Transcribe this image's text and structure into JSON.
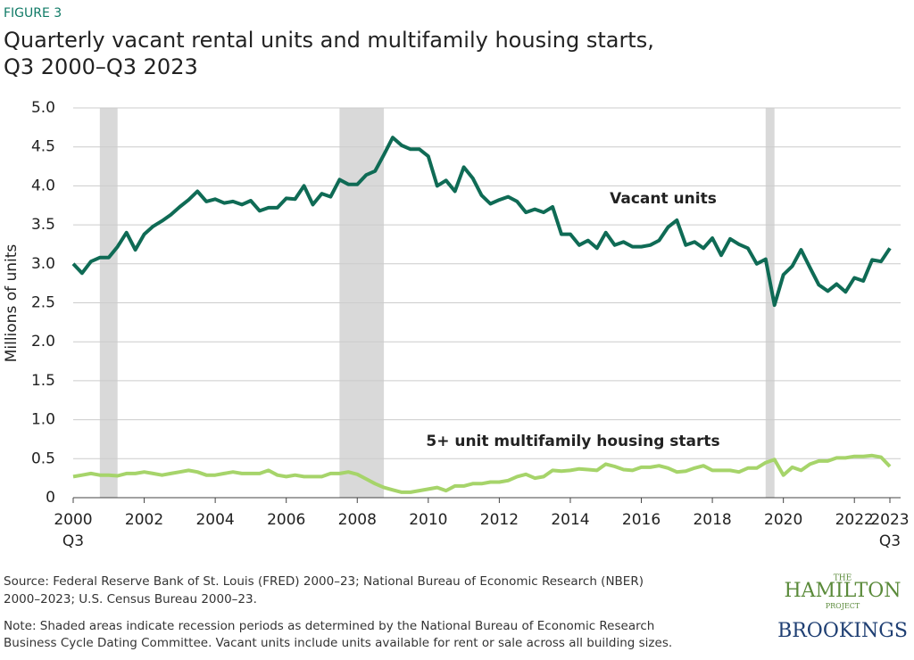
{
  "figure_label": "FIGURE 3",
  "chart_data": {
    "type": "line",
    "title": [
      "Quarterly vacant rental units and multifamily housing starts,",
      "Q3 2000–Q3 2023"
    ],
    "y_label": "Millions of units",
    "x": [
      2000,
      2000.25,
      2000.5,
      2000.75,
      2001,
      2001.25,
      2001.5,
      2001.75,
      2002,
      2002.25,
      2002.5,
      2002.75,
      2003,
      2003.25,
      2003.5,
      2003.75,
      2004,
      2004.25,
      2004.5,
      2004.75,
      2005,
      2005.25,
      2005.5,
      2005.75,
      2006,
      2006.25,
      2006.5,
      2006.75,
      2007,
      2007.25,
      2007.5,
      2007.75,
      2008,
      2008.25,
      2008.5,
      2008.75,
      2009,
      2009.25,
      2009.5,
      2009.75,
      2010,
      2010.25,
      2010.5,
      2010.75,
      2011,
      2011.25,
      2011.5,
      2011.75,
      2012,
      2012.25,
      2012.5,
      2012.75,
      2013,
      2013.25,
      2013.5,
      2013.75,
      2014,
      2014.25,
      2014.5,
      2014.75,
      2015,
      2015.25,
      2015.5,
      2015.75,
      2016,
      2016.25,
      2016.5,
      2016.75,
      2017,
      2017.25,
      2017.5,
      2017.75,
      2018,
      2018.25,
      2018.5,
      2018.75,
      2019,
      2019.25,
      2019.5,
      2019.75,
      2020,
      2020.25,
      2020.5,
      2020.75,
      2021,
      2021.25,
      2021.5,
      2021.75,
      2022,
      2022.25,
      2022.5,
      2022.75,
      2023
    ],
    "series": [
      {
        "name": "Vacant units",
        "color": "#0f6b55",
        "values": [
          3.0,
          2.88,
          3.03,
          3.08,
          3.08,
          3.22,
          3.4,
          3.18,
          3.38,
          3.48,
          3.55,
          3.63,
          3.73,
          3.82,
          3.93,
          3.8,
          3.83,
          3.78,
          3.8,
          3.76,
          3.81,
          3.68,
          3.72,
          3.72,
          3.84,
          3.83,
          4.0,
          3.76,
          3.9,
          3.86,
          4.08,
          4.02,
          4.02,
          4.14,
          4.19,
          4.4,
          4.62,
          4.52,
          4.47,
          4.47,
          4.38,
          4.0,
          4.07,
          3.93,
          4.24,
          4.1,
          3.88,
          3.77,
          3.82,
          3.86,
          3.8,
          3.66,
          3.7,
          3.66,
          3.73,
          3.38,
          3.38,
          3.24,
          3.3,
          3.2,
          3.4,
          3.24,
          3.28,
          3.22,
          3.22,
          3.24,
          3.3,
          3.47,
          3.56,
          3.24,
          3.28,
          3.2,
          3.33,
          3.11,
          3.32,
          3.25,
          3.2,
          3.0,
          3.06,
          2.47,
          2.86,
          2.97,
          3.18,
          2.95,
          2.73,
          2.65,
          2.74,
          2.64,
          2.82,
          2.78,
          3.05,
          3.03,
          3.2
        ]
      },
      {
        "name": "5+ unit multifamily housing starts",
        "color": "#a6d46a",
        "values": [
          0.27,
          0.29,
          0.31,
          0.29,
          0.29,
          0.28,
          0.31,
          0.31,
          0.33,
          0.31,
          0.29,
          0.31,
          0.33,
          0.35,
          0.33,
          0.29,
          0.29,
          0.31,
          0.33,
          0.31,
          0.31,
          0.31,
          0.35,
          0.29,
          0.27,
          0.29,
          0.27,
          0.27,
          0.27,
          0.31,
          0.31,
          0.33,
          0.3,
          0.24,
          0.18,
          0.13,
          0.1,
          0.07,
          0.07,
          0.09,
          0.11,
          0.13,
          0.09,
          0.15,
          0.15,
          0.18,
          0.18,
          0.2,
          0.2,
          0.22,
          0.27,
          0.3,
          0.25,
          0.27,
          0.35,
          0.34,
          0.35,
          0.37,
          0.36,
          0.35,
          0.43,
          0.4,
          0.36,
          0.35,
          0.39,
          0.39,
          0.41,
          0.38,
          0.33,
          0.34,
          0.38,
          0.41,
          0.35,
          0.35,
          0.35,
          0.33,
          0.38,
          0.38,
          0.45,
          0.49,
          0.29,
          0.39,
          0.35,
          0.43,
          0.47,
          0.47,
          0.51,
          0.51,
          0.53,
          0.53,
          0.54,
          0.52,
          0.4
        ]
      }
    ],
    "recessions": [
      [
        2000.75,
        2001.25
      ],
      [
        2007.5,
        2008.75
      ],
      [
        2019.5,
        2019.75
      ]
    ],
    "recession_color": "#d9d9d9",
    "xlim": [
      2000,
      2023
    ],
    "xticks": [
      {
        "value": 2000,
        "label": "2000",
        "sublabel": "Q3"
      },
      2002,
      2004,
      2006,
      2008,
      2010,
      2012,
      2014,
      2016,
      2018,
      2020,
      2022,
      {
        "value": 2023,
        "label": "2023",
        "sublabel": "Q3"
      }
    ],
    "ylim": [
      0,
      5
    ],
    "yticks": [
      0,
      0.5,
      {
        "value": 1,
        "label": "1.0"
      },
      1.5,
      {
        "value": 2,
        "label": "2.0"
      },
      2.5,
      {
        "value": 3,
        "label": "3.0"
      },
      3.5,
      {
        "value": 4,
        "label": "4.0"
      },
      4.5,
      {
        "value": 5,
        "label": "5.0"
      }
    ],
    "grid": true
  },
  "source": [
    "Source: Federal Reserve Bank of St. Louis (FRED) 2000–23; National Bureau of Economic Research (NBER)",
    "2000–2023; U.S. Census Bureau 2000–23."
  ],
  "note": [
    "Note: Shaded areas indicate recession periods as determined by the National Bureau of Economic Research",
    "Business Cycle Dating Committee. Vacant units include units available for rent or sale across all building sizes."
  ],
  "logos": {
    "hamilton_top": "THE",
    "hamilton": "HAMILTON",
    "hamilton_bottom": "PROJECT",
    "brookings": "BROOKINGS"
  }
}
